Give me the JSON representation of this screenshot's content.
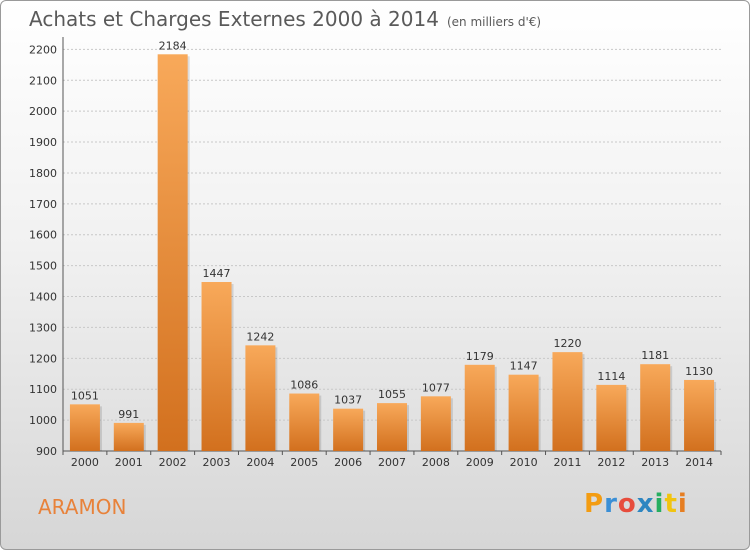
{
  "header": {
    "title": "Achats et Charges Externes 2000 à 2014",
    "subtitle": "(en milliers d'€)"
  },
  "footer": {
    "place": "ARAMON",
    "logo": "Proxiti"
  },
  "colors": {
    "bar_light": "#f8a95a",
    "bar_dark": "#d2701e",
    "place_text": "#e8823a"
  },
  "chart_data": {
    "type": "bar",
    "title": "Achats et Charges Externes 2000 à 2014",
    "subtitle": "(en milliers d'€)",
    "categories": [
      "2000",
      "2001",
      "2002",
      "2003",
      "2004",
      "2005",
      "2006",
      "2007",
      "2008",
      "2009",
      "2010",
      "2011",
      "2012",
      "2013",
      "2014"
    ],
    "values": [
      1051,
      991,
      2184,
      1447,
      1242,
      1086,
      1037,
      1055,
      1077,
      1179,
      1147,
      1220,
      1114,
      1181,
      1130
    ],
    "yticks": [
      900,
      1000,
      1100,
      1200,
      1300,
      1400,
      1500,
      1600,
      1700,
      1800,
      1900,
      2000,
      2100,
      2200
    ],
    "ylim": [
      900,
      2240
    ],
    "grid": true,
    "data_labels": true,
    "legend": "none"
  }
}
